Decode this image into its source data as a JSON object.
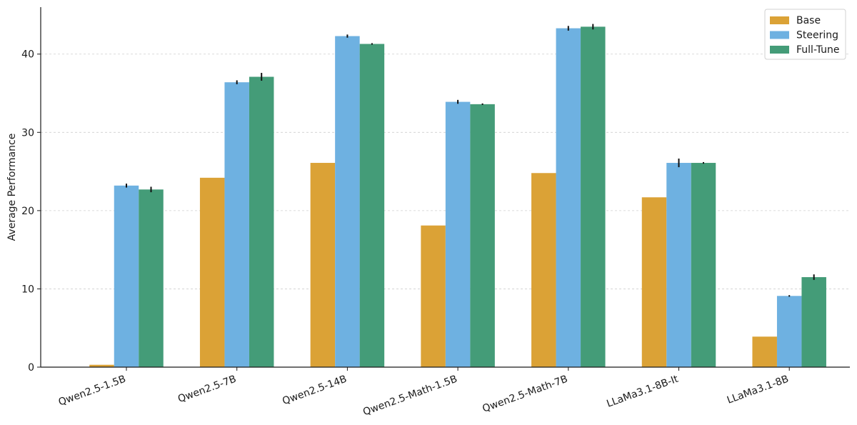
{
  "chart_data": {
    "type": "bar",
    "title": "",
    "xlabel": "",
    "ylabel": "Average Performance",
    "ylim": [
      0,
      46
    ],
    "yticks": [
      0,
      10,
      20,
      30,
      40
    ],
    "grid": "y-dashed",
    "legend_position": "top-right",
    "categories": [
      "Qwen2.5-1.5B",
      "Qwen2.5-7B",
      "Qwen2.5-14B",
      "Qwen2.5-Math-1.5B",
      "Qwen2.5-Math-7B",
      "LLaMa3.1-8B-It",
      "LLaMa3.1-8B"
    ],
    "series": [
      {
        "name": "Base",
        "color": "#DBA236",
        "values": [
          0.3,
          24.2,
          26.1,
          18.1,
          24.8,
          21.7,
          3.9
        ],
        "errors": [
          0,
          0,
          0,
          0,
          0,
          0,
          0
        ]
      },
      {
        "name": "Steering",
        "color": "#6EB1E1",
        "values": [
          23.2,
          36.4,
          42.3,
          33.9,
          43.3,
          26.1,
          9.1
        ],
        "errors": [
          0.25,
          0.25,
          0.2,
          0.25,
          0.3,
          0.55,
          0.1
        ]
      },
      {
        "name": "Full-Tune",
        "color": "#449C78",
        "values": [
          22.7,
          37.1,
          41.3,
          33.6,
          43.5,
          26.1,
          11.5
        ],
        "errors": [
          0.35,
          0.5,
          0.1,
          0.1,
          0.35,
          0.1,
          0.35
        ]
      }
    ]
  }
}
